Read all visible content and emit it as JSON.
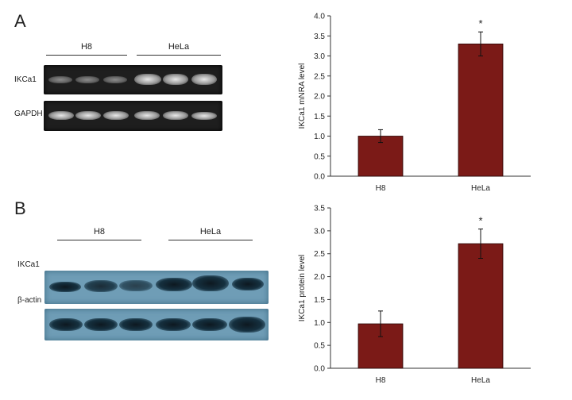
{
  "panel_A": {
    "letter": "A",
    "groups": [
      "H8",
      "HeLa"
    ],
    "row_labels": [
      "IKCa1",
      "GAPDH"
    ]
  },
  "panel_B": {
    "letter": "B",
    "groups": [
      "H8",
      "HeLa"
    ],
    "row_labels": [
      "IKCa1",
      "β-actin"
    ]
  },
  "colors": {
    "bar_fill": "#7b1a17",
    "gel_background": "#1e1e1e",
    "western_background": "#6f9db6"
  },
  "chart_data": [
    {
      "type": "bar",
      "categories": [
        "H8",
        "HeLa"
      ],
      "values": [
        1.0,
        3.3
      ],
      "errors": [
        0.16,
        0.3
      ],
      "annotations": [
        "",
        "*"
      ],
      "ylabel": "IKCa1 mNRA level",
      "ylim": [
        0,
        4.0
      ],
      "yticks": [
        "0.0",
        "0.5",
        "1.0",
        "1.5",
        "2.0",
        "2.5",
        "3.0",
        "3.5",
        "4.0"
      ]
    },
    {
      "type": "bar",
      "categories": [
        "H8",
        "HeLa"
      ],
      "values": [
        0.97,
        2.72
      ],
      "errors": [
        0.28,
        0.32
      ],
      "annotations": [
        "",
        "*"
      ],
      "ylabel": "IKCa1 protein level",
      "ylim": [
        0,
        3.5
      ],
      "yticks": [
        "0.0",
        "0.5",
        "1.0",
        "1.5",
        "2.0",
        "2.5",
        "3.0",
        "3.5"
      ]
    }
  ]
}
